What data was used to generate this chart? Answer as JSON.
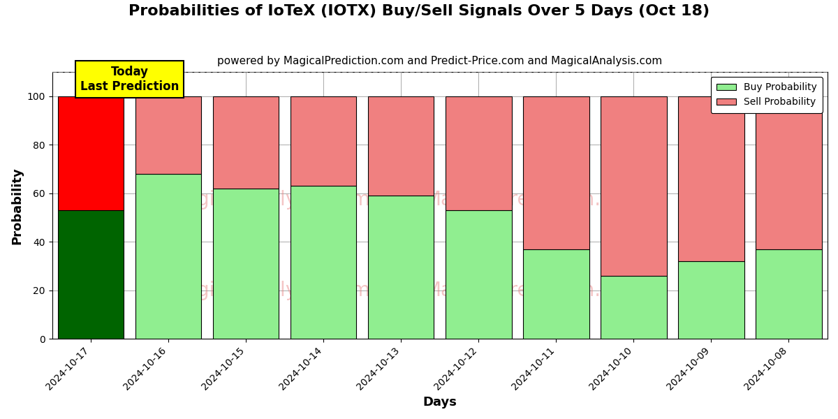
{
  "title": "Probabilities of IoTeX (IOTX) Buy/Sell Signals Over 5 Days (Oct 18)",
  "subtitle": "powered by MagicalPrediction.com and Predict-Price.com and MagicalAnalysis.com",
  "xlabel": "Days",
  "ylabel": "Probability",
  "categories": [
    "2024-10-17",
    "2024-10-16",
    "2024-10-15",
    "2024-10-14",
    "2024-10-13",
    "2024-10-12",
    "2024-10-11",
    "2024-10-10",
    "2024-10-09",
    "2024-10-08"
  ],
  "buy_values": [
    53,
    68,
    62,
    63,
    59,
    53,
    37,
    26,
    32,
    37
  ],
  "sell_values": [
    47,
    32,
    38,
    37,
    41,
    47,
    63,
    74,
    68,
    63
  ],
  "buy_colors": [
    "#006400",
    "#90EE90",
    "#90EE90",
    "#90EE90",
    "#90EE90",
    "#90EE90",
    "#90EE90",
    "#90EE90",
    "#90EE90",
    "#90EE90"
  ],
  "sell_colors": [
    "#FF0000",
    "#F08080",
    "#F08080",
    "#F08080",
    "#F08080",
    "#F08080",
    "#F08080",
    "#F08080",
    "#F08080",
    "#F08080"
  ],
  "ylim": [
    0,
    110
  ],
  "dashed_line_y": 110,
  "legend_buy_color": "#90EE90",
  "legend_sell_color": "#F08080",
  "today_box_color": "#FFFF00",
  "today_text": "Today\nLast Prediction",
  "grid_color": "#AAAAAA",
  "background_color": "#FFFFFF",
  "title_fontsize": 16,
  "subtitle_fontsize": 11,
  "axis_label_fontsize": 13,
  "tick_fontsize": 10,
  "bar_width": 0.85
}
